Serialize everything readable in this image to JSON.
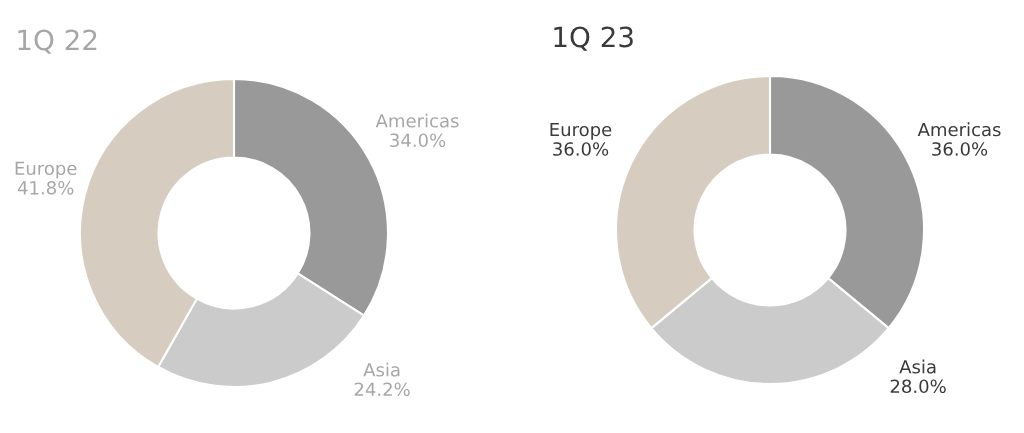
{
  "chart_data": [
    {
      "type": "donut",
      "title": "1Q 22",
      "categories": [
        "Americas",
        "Asia",
        "Europe"
      ],
      "values": [
        34.0,
        24.2,
        41.8
      ],
      "colors": [
        "#999999",
        "#cbcbcb",
        "#d6cdc0"
      ],
      "value_labels": [
        "34.0%",
        "24.2%",
        "41.8%"
      ]
    },
    {
      "type": "donut",
      "title": "1Q 23",
      "categories": [
        "Americas",
        "Asia",
        "Europe"
      ],
      "values": [
        36.0,
        28.0,
        36.0
      ],
      "colors": [
        "#999999",
        "#cbcbcb",
        "#d6cdc0"
      ],
      "value_labels": [
        "36.0%",
        "28.0%",
        "36.0%"
      ]
    }
  ]
}
